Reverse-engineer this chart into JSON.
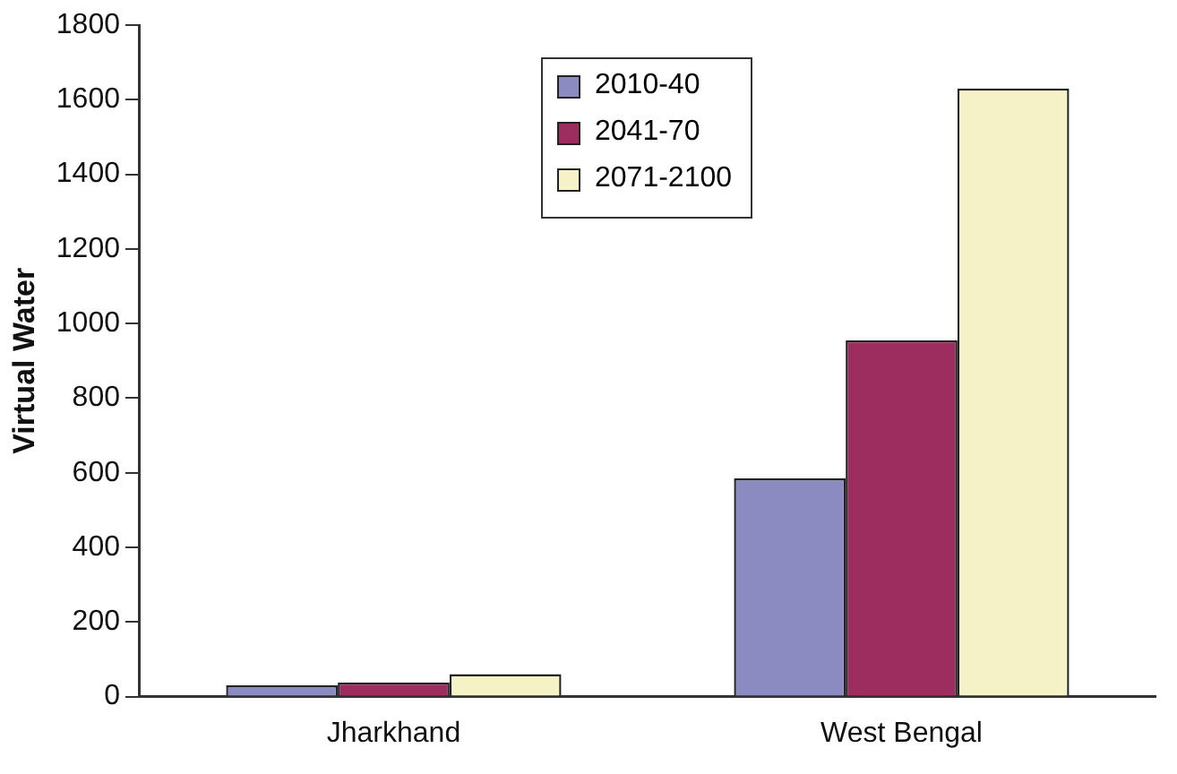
{
  "chart_data": {
    "type": "bar",
    "ylabel": "Virtual Water",
    "categories": [
      "Jharkhand",
      "West Bengal"
    ],
    "series": [
      {
        "name": "2010-40",
        "color": "#8b8bc1",
        "values": [
          30,
          585
        ]
      },
      {
        "name": "2041-70",
        "color": "#9c2d5e",
        "values": [
          38,
          955
        ]
      },
      {
        "name": "2071-2100",
        "color": "#f5f2c8",
        "values": [
          60,
          1630
        ]
      }
    ],
    "ylim": [
      0,
      1800
    ],
    "yticks": [
      0,
      200,
      400,
      600,
      800,
      1000,
      1200,
      1400,
      1600,
      1800
    ],
    "grid": false,
    "legend": "top"
  }
}
